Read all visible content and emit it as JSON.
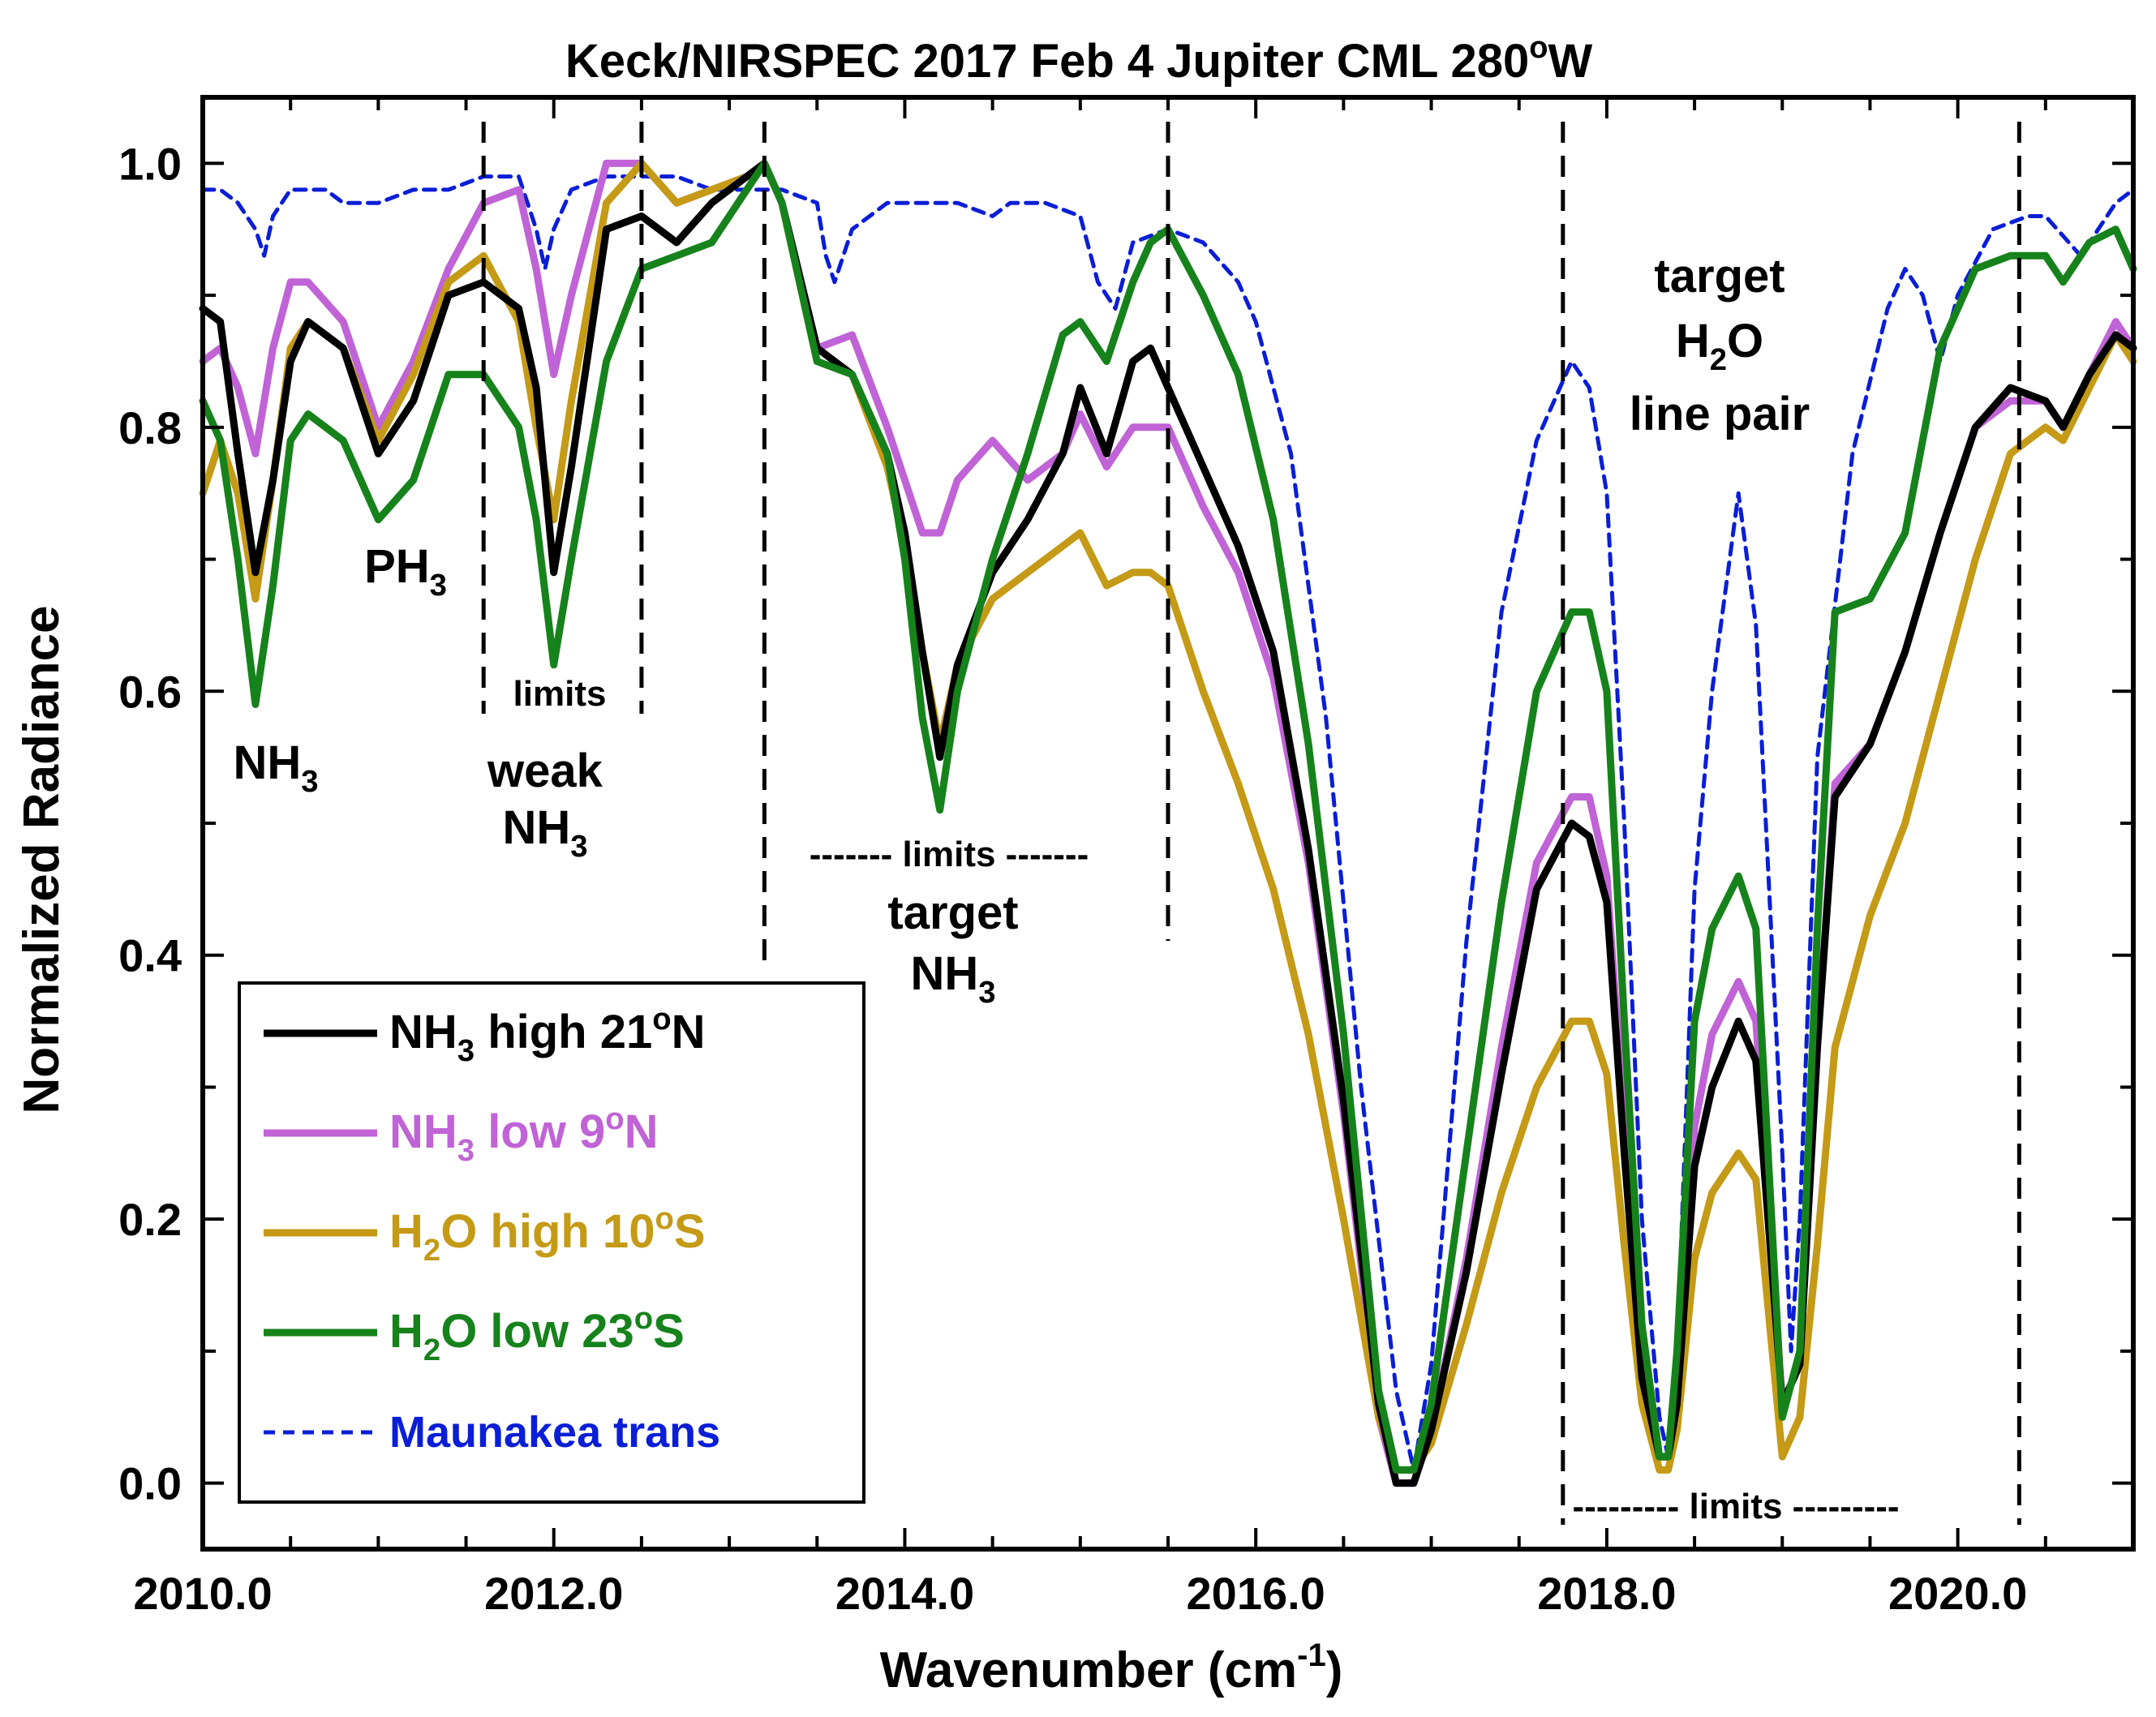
{
  "chart_data": {
    "type": "line",
    "title": "Keck/NIRSPEC 2017 Feb 4 Jupiter CML 280",
    "title_sup": "o",
    "title_tail": "W",
    "xlabel": "Wavenumber (cm",
    "xlabel_sup": "-1",
    "xlabel_tail": ")",
    "ylabel": "Normalized Radiance",
    "xlim": [
      2010.0,
      2021.0
    ],
    "ylim": [
      -0.05,
      1.05
    ],
    "x_ticks": [
      "2010.0",
      "2012.0",
      "2014.0",
      "2016.0",
      "2018.0",
      "2020.0"
    ],
    "y_ticks": [
      "0.0",
      "0.2",
      "0.4",
      "0.6",
      "0.8",
      "1.0"
    ],
    "grid": false,
    "legend_position": "bottom-left",
    "series": [
      {
        "name": "NH3 high 21oN",
        "color": "#000000",
        "dashed": false,
        "x": [
          2010.0,
          2010.1,
          2010.2,
          2010.3,
          2010.4,
          2010.5,
          2010.6,
          2010.8,
          2011.0,
          2011.2,
          2011.4,
          2011.6,
          2011.8,
          2011.9,
          2012.0,
          2012.1,
          2012.3,
          2012.5,
          2012.7,
          2012.9,
          2013.1,
          2013.2,
          2013.3,
          2013.5,
          2013.7,
          2013.9,
          2014.0,
          2014.1,
          2014.2,
          2014.3,
          2014.5,
          2014.7,
          2014.9,
          2015.0,
          2015.15,
          2015.3,
          2015.4,
          2015.5,
          2015.7,
          2015.9,
          2016.1,
          2016.3,
          2016.5,
          2016.7,
          2016.8,
          2016.9,
          2017.0,
          2017.2,
          2017.4,
          2017.6,
          2017.8,
          2017.9,
          2018.0,
          2018.1,
          2018.2,
          2018.3,
          2018.35,
          2018.4,
          2018.5,
          2018.6,
          2018.75,
          2018.85,
          2019.0,
          2019.1,
          2019.2,
          2019.3,
          2019.5,
          2019.7,
          2019.9,
          2020.1,
          2020.3,
          2020.5,
          2020.6,
          2020.75,
          2020.9,
          2021.0
        ],
        "values": [
          0.89,
          0.88,
          0.78,
          0.69,
          0.76,
          0.85,
          0.88,
          0.86,
          0.78,
          0.82,
          0.9,
          0.91,
          0.89,
          0.83,
          0.69,
          0.77,
          0.95,
          0.96,
          0.94,
          0.97,
          0.99,
          1.0,
          0.97,
          0.86,
          0.84,
          0.78,
          0.72,
          0.63,
          0.55,
          0.62,
          0.69,
          0.73,
          0.78,
          0.83,
          0.78,
          0.85,
          0.86,
          0.83,
          0.77,
          0.71,
          0.63,
          0.48,
          0.29,
          0.06,
          0.0,
          0.0,
          0.04,
          0.16,
          0.31,
          0.45,
          0.5,
          0.49,
          0.44,
          0.25,
          0.08,
          0.02,
          0.02,
          0.06,
          0.24,
          0.3,
          0.35,
          0.32,
          0.06,
          0.09,
          0.33,
          0.52,
          0.56,
          0.63,
          0.72,
          0.8,
          0.83,
          0.82,
          0.8,
          0.84,
          0.87,
          0.86
        ]
      },
      {
        "name": "NH3 low 9oN",
        "color": "#c063d6",
        "dashed": false,
        "x": [
          2010.0,
          2010.1,
          2010.2,
          2010.3,
          2010.4,
          2010.5,
          2010.6,
          2010.8,
          2011.0,
          2011.2,
          2011.4,
          2011.6,
          2011.8,
          2011.9,
          2012.0,
          2012.1,
          2012.3,
          2012.5,
          2012.7,
          2012.9,
          2013.1,
          2013.2,
          2013.3,
          2013.5,
          2013.7,
          2013.9,
          2014.0,
          2014.1,
          2014.2,
          2014.3,
          2014.5,
          2014.7,
          2014.9,
          2015.0,
          2015.15,
          2015.3,
          2015.4,
          2015.5,
          2015.7,
          2015.9,
          2016.1,
          2016.3,
          2016.5,
          2016.7,
          2016.8,
          2016.9,
          2017.0,
          2017.2,
          2017.4,
          2017.6,
          2017.8,
          2017.9,
          2018.0,
          2018.1,
          2018.2,
          2018.3,
          2018.35,
          2018.4,
          2018.5,
          2018.6,
          2018.75,
          2018.85,
          2019.0,
          2019.1,
          2019.2,
          2019.3,
          2019.5,
          2019.7,
          2019.9,
          2020.1,
          2020.3,
          2020.5,
          2020.6,
          2020.75,
          2020.9,
          2021.0
        ],
        "values": [
          0.85,
          0.86,
          0.83,
          0.78,
          0.86,
          0.91,
          0.91,
          0.88,
          0.8,
          0.85,
          0.92,
          0.97,
          0.98,
          0.92,
          0.84,
          0.9,
          1.0,
          1.0,
          0.97,
          0.98,
          0.99,
          1.0,
          0.97,
          0.86,
          0.87,
          0.8,
          0.76,
          0.72,
          0.72,
          0.76,
          0.79,
          0.76,
          0.78,
          0.81,
          0.77,
          0.8,
          0.8,
          0.8,
          0.74,
          0.69,
          0.61,
          0.47,
          0.28,
          0.05,
          0.0,
          0.0,
          0.04,
          0.17,
          0.33,
          0.47,
          0.52,
          0.52,
          0.46,
          0.27,
          0.09,
          0.02,
          0.02,
          0.07,
          0.27,
          0.34,
          0.38,
          0.35,
          0.06,
          0.09,
          0.33,
          0.53,
          0.56,
          0.63,
          0.72,
          0.8,
          0.82,
          0.82,
          0.8,
          0.84,
          0.88,
          0.86
        ]
      },
      {
        "name": "H2O high 10oS",
        "color": "#c49a16",
        "dashed": false,
        "x": [
          2010.0,
          2010.1,
          2010.2,
          2010.3,
          2010.4,
          2010.5,
          2010.6,
          2010.8,
          2011.0,
          2011.2,
          2011.4,
          2011.6,
          2011.8,
          2011.9,
          2012.0,
          2012.1,
          2012.3,
          2012.5,
          2012.7,
          2012.9,
          2013.1,
          2013.2,
          2013.3,
          2013.5,
          2013.7,
          2013.9,
          2014.0,
          2014.1,
          2014.2,
          2014.3,
          2014.5,
          2014.7,
          2014.9,
          2015.0,
          2015.15,
          2015.3,
          2015.4,
          2015.5,
          2015.7,
          2015.9,
          2016.1,
          2016.3,
          2016.5,
          2016.7,
          2016.8,
          2016.9,
          2017.0,
          2017.2,
          2017.4,
          2017.6,
          2017.8,
          2017.9,
          2018.0,
          2018.1,
          2018.2,
          2018.3,
          2018.35,
          2018.4,
          2018.5,
          2018.6,
          2018.75,
          2018.85,
          2019.0,
          2019.1,
          2019.2,
          2019.3,
          2019.5,
          2019.7,
          2019.9,
          2020.1,
          2020.3,
          2020.5,
          2020.6,
          2020.75,
          2020.9,
          2021.0
        ],
        "values": [
          0.75,
          0.79,
          0.75,
          0.67,
          0.76,
          0.86,
          0.88,
          0.86,
          0.79,
          0.84,
          0.91,
          0.93,
          0.88,
          0.8,
          0.73,
          0.82,
          0.97,
          1.0,
          0.97,
          0.98,
          0.99,
          1.0,
          0.97,
          0.85,
          0.84,
          0.77,
          0.71,
          0.63,
          0.56,
          0.62,
          0.67,
          0.69,
          0.71,
          0.72,
          0.68,
          0.69,
          0.69,
          0.68,
          0.6,
          0.53,
          0.45,
          0.34,
          0.2,
          0.05,
          0.01,
          0.01,
          0.03,
          0.12,
          0.22,
          0.3,
          0.35,
          0.35,
          0.31,
          0.18,
          0.06,
          0.01,
          0.01,
          0.04,
          0.17,
          0.22,
          0.25,
          0.23,
          0.02,
          0.05,
          0.18,
          0.33,
          0.43,
          0.5,
          0.6,
          0.7,
          0.78,
          0.8,
          0.79,
          0.83,
          0.87,
          0.85
        ]
      },
      {
        "name": "H2O low 23oS",
        "color": "#16821b",
        "dashed": false,
        "x": [
          2010.0,
          2010.1,
          2010.2,
          2010.3,
          2010.4,
          2010.5,
          2010.6,
          2010.8,
          2011.0,
          2011.2,
          2011.4,
          2011.6,
          2011.8,
          2011.9,
          2012.0,
          2012.1,
          2012.3,
          2012.5,
          2012.7,
          2012.9,
          2013.1,
          2013.2,
          2013.3,
          2013.5,
          2013.7,
          2013.9,
          2014.0,
          2014.1,
          2014.2,
          2014.3,
          2014.5,
          2014.7,
          2014.9,
          2015.0,
          2015.15,
          2015.3,
          2015.4,
          2015.5,
          2015.7,
          2015.9,
          2016.1,
          2016.3,
          2016.5,
          2016.7,
          2016.8,
          2016.9,
          2017.0,
          2017.2,
          2017.4,
          2017.6,
          2017.8,
          2017.9,
          2018.0,
          2018.1,
          2018.2,
          2018.3,
          2018.35,
          2018.4,
          2018.5,
          2018.6,
          2018.75,
          2018.85,
          2019.0,
          2019.1,
          2019.2,
          2019.3,
          2019.5,
          2019.7,
          2019.9,
          2020.1,
          2020.3,
          2020.5,
          2020.6,
          2020.75,
          2020.9,
          2021.0
        ],
        "values": [
          0.82,
          0.79,
          0.7,
          0.59,
          0.68,
          0.79,
          0.81,
          0.79,
          0.73,
          0.76,
          0.84,
          0.84,
          0.8,
          0.73,
          0.62,
          0.7,
          0.85,
          0.92,
          0.93,
          0.94,
          0.98,
          1.0,
          0.97,
          0.85,
          0.84,
          0.78,
          0.7,
          0.58,
          0.51,
          0.6,
          0.7,
          0.78,
          0.87,
          0.88,
          0.85,
          0.91,
          0.94,
          0.95,
          0.9,
          0.84,
          0.73,
          0.56,
          0.34,
          0.07,
          0.01,
          0.01,
          0.06,
          0.25,
          0.44,
          0.6,
          0.66,
          0.66,
          0.6,
          0.35,
          0.12,
          0.02,
          0.02,
          0.1,
          0.35,
          0.42,
          0.46,
          0.42,
          0.05,
          0.1,
          0.42,
          0.66,
          0.67,
          0.72,
          0.86,
          0.92,
          0.93,
          0.93,
          0.91,
          0.94,
          0.95,
          0.92
        ]
      },
      {
        "name": "Maunakea trans",
        "color": "#0a1ed6",
        "dashed": true,
        "x": [
          2010.0,
          2010.1,
          2010.2,
          2010.3,
          2010.35,
          2010.4,
          2010.5,
          2010.7,
          2010.8,
          2010.9,
          2011.0,
          2011.2,
          2011.4,
          2011.6,
          2011.8,
          2011.9,
          2011.95,
          2012.0,
          2012.1,
          2012.3,
          2012.5,
          2012.7,
          2012.9,
          2013.1,
          2013.3,
          2013.5,
          2013.55,
          2013.6,
          2013.7,
          2013.9,
          2014.1,
          2014.3,
          2014.5,
          2014.6,
          2014.8,
          2015.0,
          2015.1,
          2015.2,
          2015.3,
          2015.5,
          2015.7,
          2015.9,
          2016.0,
          2016.2,
          2016.4,
          2016.6,
          2016.8,
          2016.9,
          2017.0,
          2017.2,
          2017.4,
          2017.6,
          2017.8,
          2017.9,
          2018.0,
          2018.1,
          2018.2,
          2018.3,
          2018.35,
          2018.4,
          2018.5,
          2018.6,
          2018.75,
          2018.85,
          2019.0,
          2019.05,
          2019.1,
          2019.2,
          2019.4,
          2019.6,
          2019.7,
          2019.8,
          2019.9,
          2020.0,
          2020.2,
          2020.4,
          2020.5,
          2020.7,
          2020.9,
          2021.0
        ],
        "values": [
          0.98,
          0.98,
          0.97,
          0.95,
          0.93,
          0.96,
          0.98,
          0.98,
          0.97,
          0.97,
          0.97,
          0.98,
          0.98,
          0.99,
          0.99,
          0.95,
          0.92,
          0.95,
          0.98,
          0.99,
          0.99,
          0.99,
          0.98,
          0.98,
          0.98,
          0.97,
          0.93,
          0.91,
          0.95,
          0.97,
          0.97,
          0.97,
          0.96,
          0.97,
          0.97,
          0.96,
          0.91,
          0.89,
          0.94,
          0.95,
          0.94,
          0.91,
          0.88,
          0.78,
          0.58,
          0.3,
          0.07,
          0.01,
          0.09,
          0.41,
          0.66,
          0.79,
          0.85,
          0.83,
          0.75,
          0.5,
          0.2,
          0.05,
          0.02,
          0.1,
          0.45,
          0.6,
          0.75,
          0.65,
          0.25,
          0.1,
          0.2,
          0.55,
          0.78,
          0.89,
          0.92,
          0.9,
          0.85,
          0.9,
          0.95,
          0.96,
          0.96,
          0.93,
          0.97,
          0.98
        ]
      }
    ],
    "legend": [
      {
        "main": "NH",
        "sub": "3",
        "rest": " high 21",
        "sup": "o",
        "tail": "N",
        "color": "#000000",
        "dashed": false
      },
      {
        "main": "NH",
        "sub": "3",
        "rest": " low 9",
        "sup": "o",
        "tail": "N",
        "color": "#c063d6",
        "dashed": false
      },
      {
        "main": "H",
        "sub": "2",
        "rest": "O high 10",
        "sup": "o",
        "tail": "S",
        "color": "#c49a16",
        "dashed": false
      },
      {
        "main": "H",
        "sub": "2",
        "rest": "O low 23",
        "sup": "o",
        "tail": "S",
        "color": "#16821b",
        "dashed": false
      },
      {
        "main": "Maunakea trans",
        "sub": "",
        "rest": "",
        "sup": "",
        "tail": "",
        "color": "#0a1ed6",
        "dashed": true
      }
    ],
    "annotations": {
      "nh3_left": {
        "main": "NH",
        "sub": "3"
      },
      "ph3": {
        "main": "PH",
        "sub": "3"
      },
      "limits_small": "limits",
      "weak": "weak",
      "weak_nh3": {
        "main": "NH",
        "sub": "3"
      },
      "limits_mid": "------- limits -------",
      "target": "target",
      "target_nh3": {
        "main": "NH",
        "sub": "3"
      },
      "target_h2o_line1": "target",
      "target_h2o_line2": {
        "main": "H",
        "sub": "2",
        "tail": "O"
      },
      "target_h2o_line3": "line pair",
      "limits_right": "--------- limits ---------"
    },
    "vertical_dashed_lines": [
      2011.6,
      2012.5,
      2013.2,
      2015.5,
      2017.75,
      2020.35
    ]
  }
}
